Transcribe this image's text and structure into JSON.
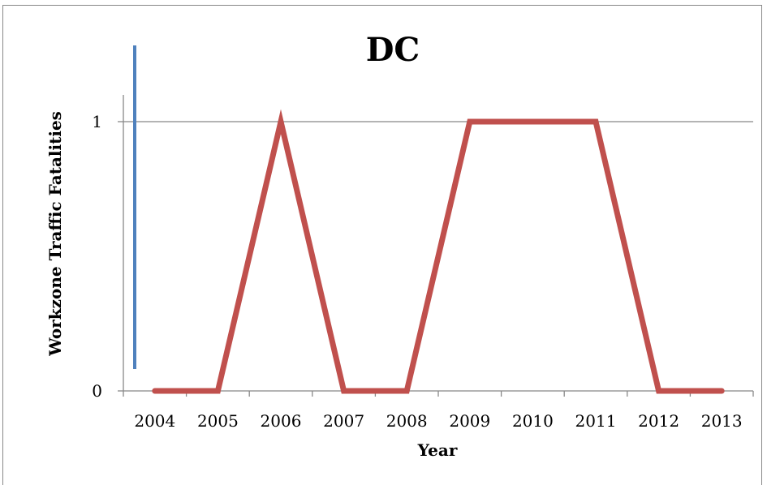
{
  "chart_data": {
    "type": "line",
    "title": "DC",
    "xlabel": "Year",
    "ylabel": "Workzone Traffic Fatalities",
    "categories": [
      "2004",
      "2005",
      "2006",
      "2007",
      "2008",
      "2009",
      "2010",
      "2011",
      "2012",
      "2013"
    ],
    "yticks": [
      "0",
      "1"
    ],
    "ylim": [
      0,
      1
    ],
    "grid": true,
    "legend": "none",
    "series": [
      {
        "color": "#c0504d",
        "values": [
          0,
          0,
          1,
          0,
          0,
          1,
          1,
          1,
          0,
          0
        ]
      }
    ],
    "decoration_color": "#4f81bd"
  }
}
